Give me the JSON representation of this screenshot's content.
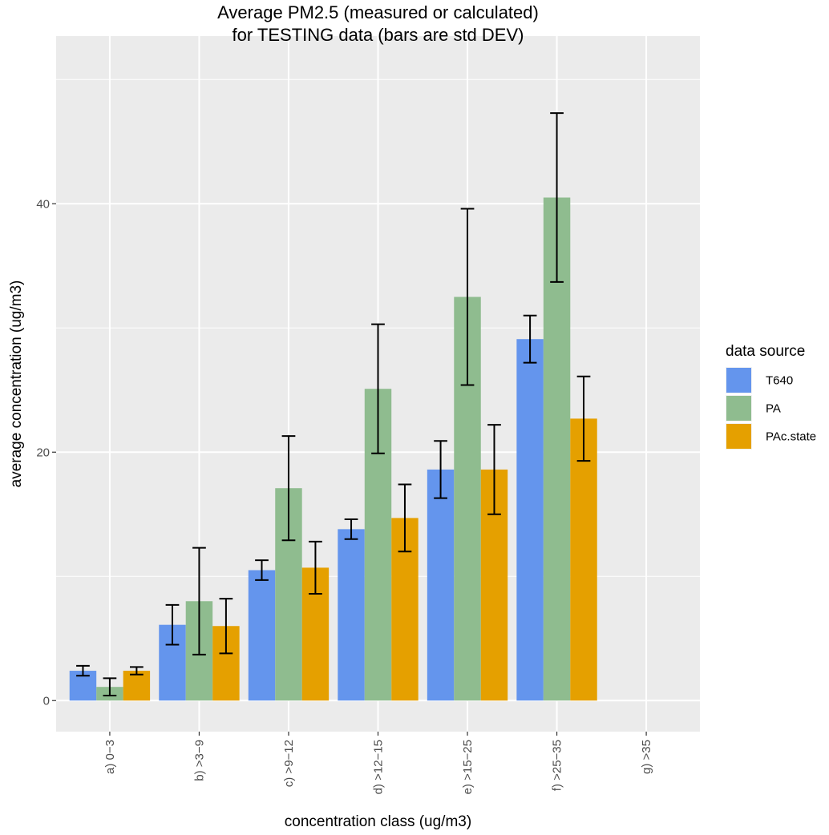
{
  "chart_data": {
    "type": "bar",
    "title": "Average PM2.5 (measured or calculated)",
    "subtitle": "for TESTING data (bars are std DEV)",
    "xlabel": "concentration class (ug/m3)",
    "ylabel": "average concentration (ug/m3)",
    "categories": [
      "a) 0−3",
      "b) >3−9",
      "c) >9−12",
      "d) >12−15",
      "e) >15−25",
      "f) >25−35",
      "g) >35"
    ],
    "series": [
      {
        "name": "T640",
        "color": "#6495ED",
        "values": [
          2.4,
          6.1,
          10.5,
          13.8,
          18.6,
          29.1,
          null
        ],
        "std": [
          0.4,
          1.6,
          0.8,
          0.8,
          2.3,
          1.9,
          null
        ]
      },
      {
        "name": "PA",
        "color": "#8FBC8F",
        "values": [
          1.1,
          8.0,
          17.1,
          25.1,
          32.5,
          40.5,
          null
        ],
        "std": [
          0.7,
          4.3,
          4.2,
          5.2,
          7.1,
          6.8,
          null
        ]
      },
      {
        "name": "PAc.state",
        "color": "#E5A000",
        "values": [
          2.4,
          6.0,
          10.7,
          14.7,
          18.6,
          22.7,
          null
        ],
        "std": [
          0.3,
          2.2,
          2.1,
          2.7,
          3.6,
          3.4,
          null
        ]
      }
    ],
    "ylim": [
      -2.5,
      53.5
    ],
    "yticks": [
      0,
      20,
      40
    ],
    "grid": true,
    "legend": {
      "title": "data source",
      "position": "right"
    },
    "background": "#EBEBEB",
    "gridColor": "#FFFFFF",
    "errorBarColor": "#000000"
  }
}
